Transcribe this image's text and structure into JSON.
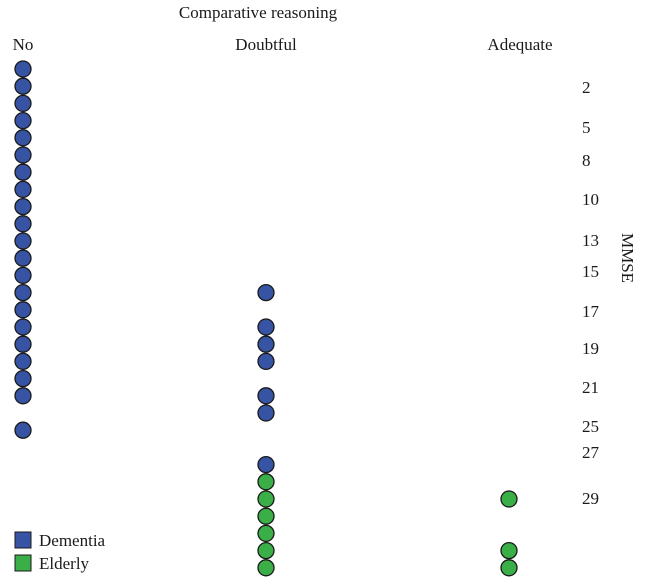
{
  "chart_data": {
    "type": "scatter",
    "title": "Comparative reasoning",
    "categories": [
      "No",
      "Doubtful",
      "Adequate"
    ],
    "ylabel": "MMSE",
    "yticks": [
      2,
      5,
      8,
      10,
      13,
      15,
      17,
      19,
      21,
      25,
      27,
      29
    ],
    "legend_position": "bottom-left",
    "series": [
      {
        "name": "Dementia",
        "color": "#3654a3",
        "points": [
          {
            "category": "No",
            "y": 0
          },
          {
            "category": "No",
            "y": 1
          },
          {
            "category": "No",
            "y": 2
          },
          {
            "category": "No",
            "y": 3
          },
          {
            "category": "No",
            "y": 4
          },
          {
            "category": "No",
            "y": 5
          },
          {
            "category": "No",
            "y": 6
          },
          {
            "category": "No",
            "y": 7
          },
          {
            "category": "No",
            "y": 8
          },
          {
            "category": "No",
            "y": 9
          },
          {
            "category": "No",
            "y": 10
          },
          {
            "category": "No",
            "y": 11
          },
          {
            "category": "No",
            "y": 12
          },
          {
            "category": "No",
            "y": 13
          },
          {
            "category": "No",
            "y": 14
          },
          {
            "category": "No",
            "y": 15
          },
          {
            "category": "No",
            "y": 16
          },
          {
            "category": "No",
            "y": 17
          },
          {
            "category": "No",
            "y": 18
          },
          {
            "category": "No",
            "y": 19
          },
          {
            "category": "No",
            "y": 21
          },
          {
            "category": "Doubtful",
            "y": 13
          },
          {
            "category": "Doubtful",
            "y": 15
          },
          {
            "category": "Doubtful",
            "y": 16
          },
          {
            "category": "Doubtful",
            "y": 17
          },
          {
            "category": "Doubtful",
            "y": 19
          },
          {
            "category": "Doubtful",
            "y": 20
          },
          {
            "category": "Doubtful",
            "y": 23
          }
        ]
      },
      {
        "name": "Elderly",
        "color": "#3aaf48",
        "points": [
          {
            "category": "Doubtful",
            "y": 24
          },
          {
            "category": "Doubtful",
            "y": 25
          },
          {
            "category": "Doubtful",
            "y": 26
          },
          {
            "category": "Doubtful",
            "y": 27
          },
          {
            "category": "Doubtful",
            "y": 28
          },
          {
            "category": "Doubtful",
            "y": 29
          },
          {
            "category": "Adequate",
            "y": 25
          },
          {
            "category": "Adequate",
            "y": 28
          },
          {
            "category": "Adequate",
            "y": 29
          }
        ]
      }
    ]
  }
}
